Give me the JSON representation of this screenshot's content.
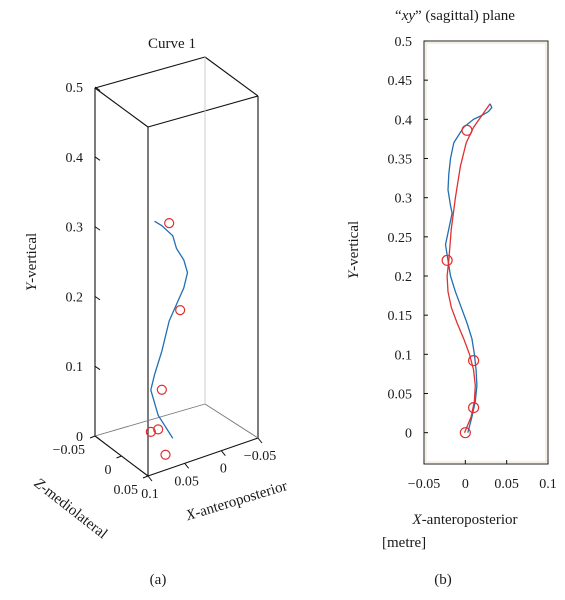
{
  "chart_data": [
    {
      "type": "line3d",
      "title": "Curve 1",
      "panel_label": "(a)",
      "xlabel_italic": "X",
      "xlabel_rest": "-anteroposterior",
      "ylabel_italic": "Y",
      "ylabel_rest": "-vertical",
      "zlabel_italic": "Z",
      "zlabel_rest": "-mediolateral",
      "y_ticks": [
        "0",
        "0.1",
        "0.2",
        "0.3",
        "0.4",
        "0.5"
      ],
      "x_ticks": [
        "0.1",
        "0.05",
        "0",
        "−0.05"
      ],
      "z_ticks": [
        "−0.05",
        "0",
        "0.05"
      ],
      "xlim": [
        -0.05,
        0.1
      ],
      "ylim": [
        0,
        0.5
      ],
      "zlim": [
        -0.05,
        0.05
      ],
      "series": [
        {
          "style": "line",
          "color": "#1f6fb2",
          "points": [
            [
              0.03,
              0.0,
              0.0
            ],
            [
              0.035,
              0.01,
              0.0
            ],
            [
              0.04,
              0.02,
              0.0
            ],
            [
              0.05,
              0.04,
              0.0
            ],
            [
              0.055,
              0.06,
              0.0
            ],
            [
              0.06,
              0.08,
              0.0
            ],
            [
              0.055,
              0.1,
              0.0
            ],
            [
              0.045,
              0.13,
              0.0
            ],
            [
              0.04,
              0.15,
              0.0
            ],
            [
              0.035,
              0.17,
              0.0
            ],
            [
              0.025,
              0.19,
              0.0
            ],
            [
              0.015,
              0.21,
              0.0
            ],
            [
              0.01,
              0.23,
              0.0
            ],
            [
              0.015,
              0.25,
              0.0
            ],
            [
              0.025,
              0.27,
              0.0
            ],
            [
              0.03,
              0.29,
              0.0
            ],
            [
              0.045,
              0.31,
              0.0
            ],
            [
              0.055,
              0.32,
              0.0
            ]
          ]
        },
        {
          "style": "markers",
          "color": "#e03030",
          "points": [
            [
              0.04,
              -0.02,
              0.0
            ],
            [
              0.05,
              0.02,
              0.0
            ],
            [
              0.06,
              0.02,
              0.0
            ],
            [
              0.045,
              0.075,
              0.0
            ],
            [
              0.02,
              0.18,
              0.0
            ],
            [
              0.035,
              0.31,
              0.0
            ]
          ]
        }
      ]
    },
    {
      "type": "line",
      "title_prefix": "“",
      "title_italic": "xy",
      "title_rest": "” (sagittal) plane",
      "panel_label": "(b)",
      "xlabel_italic": "X",
      "xlabel_rest": "-anteroposterior",
      "unit_label": "[metre]",
      "ylabel_italic": "Y",
      "ylabel_rest": "-vertical",
      "x_ticks": [
        "−0.05",
        "0",
        "0.05",
        "0.1"
      ],
      "y_ticks": [
        "0",
        "0.05",
        "0.1",
        "0.15",
        "0.2",
        "0.25",
        "0.3",
        "0.35",
        "0.4",
        "0.45",
        "0.5"
      ],
      "xlim": [
        -0.05,
        0.1
      ],
      "ylim": [
        -0.04,
        0.5
      ],
      "series": [
        {
          "name": "",
          "color": "#1f6fb2",
          "x": [
            0.003,
            0.008,
            0.012,
            0.014,
            0.013,
            0.011,
            0.008,
            0.002,
            -0.005,
            -0.012,
            -0.018,
            -0.021,
            -0.024,
            -0.02,
            -0.016,
            -0.018,
            -0.021,
            -0.02,
            -0.018,
            -0.014,
            -0.008,
            -0.002,
            0.01,
            0.02,
            0.028,
            0.032,
            0.03
          ],
          "y": [
            0.0,
            0.02,
            0.04,
            0.06,
            0.08,
            0.1,
            0.12,
            0.14,
            0.16,
            0.18,
            0.2,
            0.22,
            0.24,
            0.26,
            0.28,
            0.29,
            0.31,
            0.33,
            0.35,
            0.37,
            0.38,
            0.39,
            0.4,
            0.405,
            0.41,
            0.415,
            0.42
          ]
        },
        {
          "name": "",
          "color": "#e03030",
          "x": [
            -0.001,
            0.007,
            0.011,
            0.012,
            0.01,
            0.005,
            -0.002,
            -0.01,
            -0.017,
            -0.021,
            -0.022,
            -0.02,
            -0.017,
            -0.012,
            -0.006,
            0.001,
            0.01,
            0.02,
            0.03
          ],
          "y": [
            0.0,
            0.02,
            0.04,
            0.06,
            0.08,
            0.1,
            0.12,
            0.14,
            0.16,
            0.18,
            0.2,
            0.22,
            0.26,
            0.3,
            0.34,
            0.37,
            0.39,
            0.405,
            0.42
          ]
        },
        {
          "name": "",
          "style": "markers",
          "color": "#e03030",
          "x": [
            0.0,
            0.01,
            0.01,
            -0.022,
            0.002
          ],
          "y": [
            0.0,
            0.032,
            0.092,
            0.22,
            0.386
          ]
        }
      ]
    }
  ]
}
